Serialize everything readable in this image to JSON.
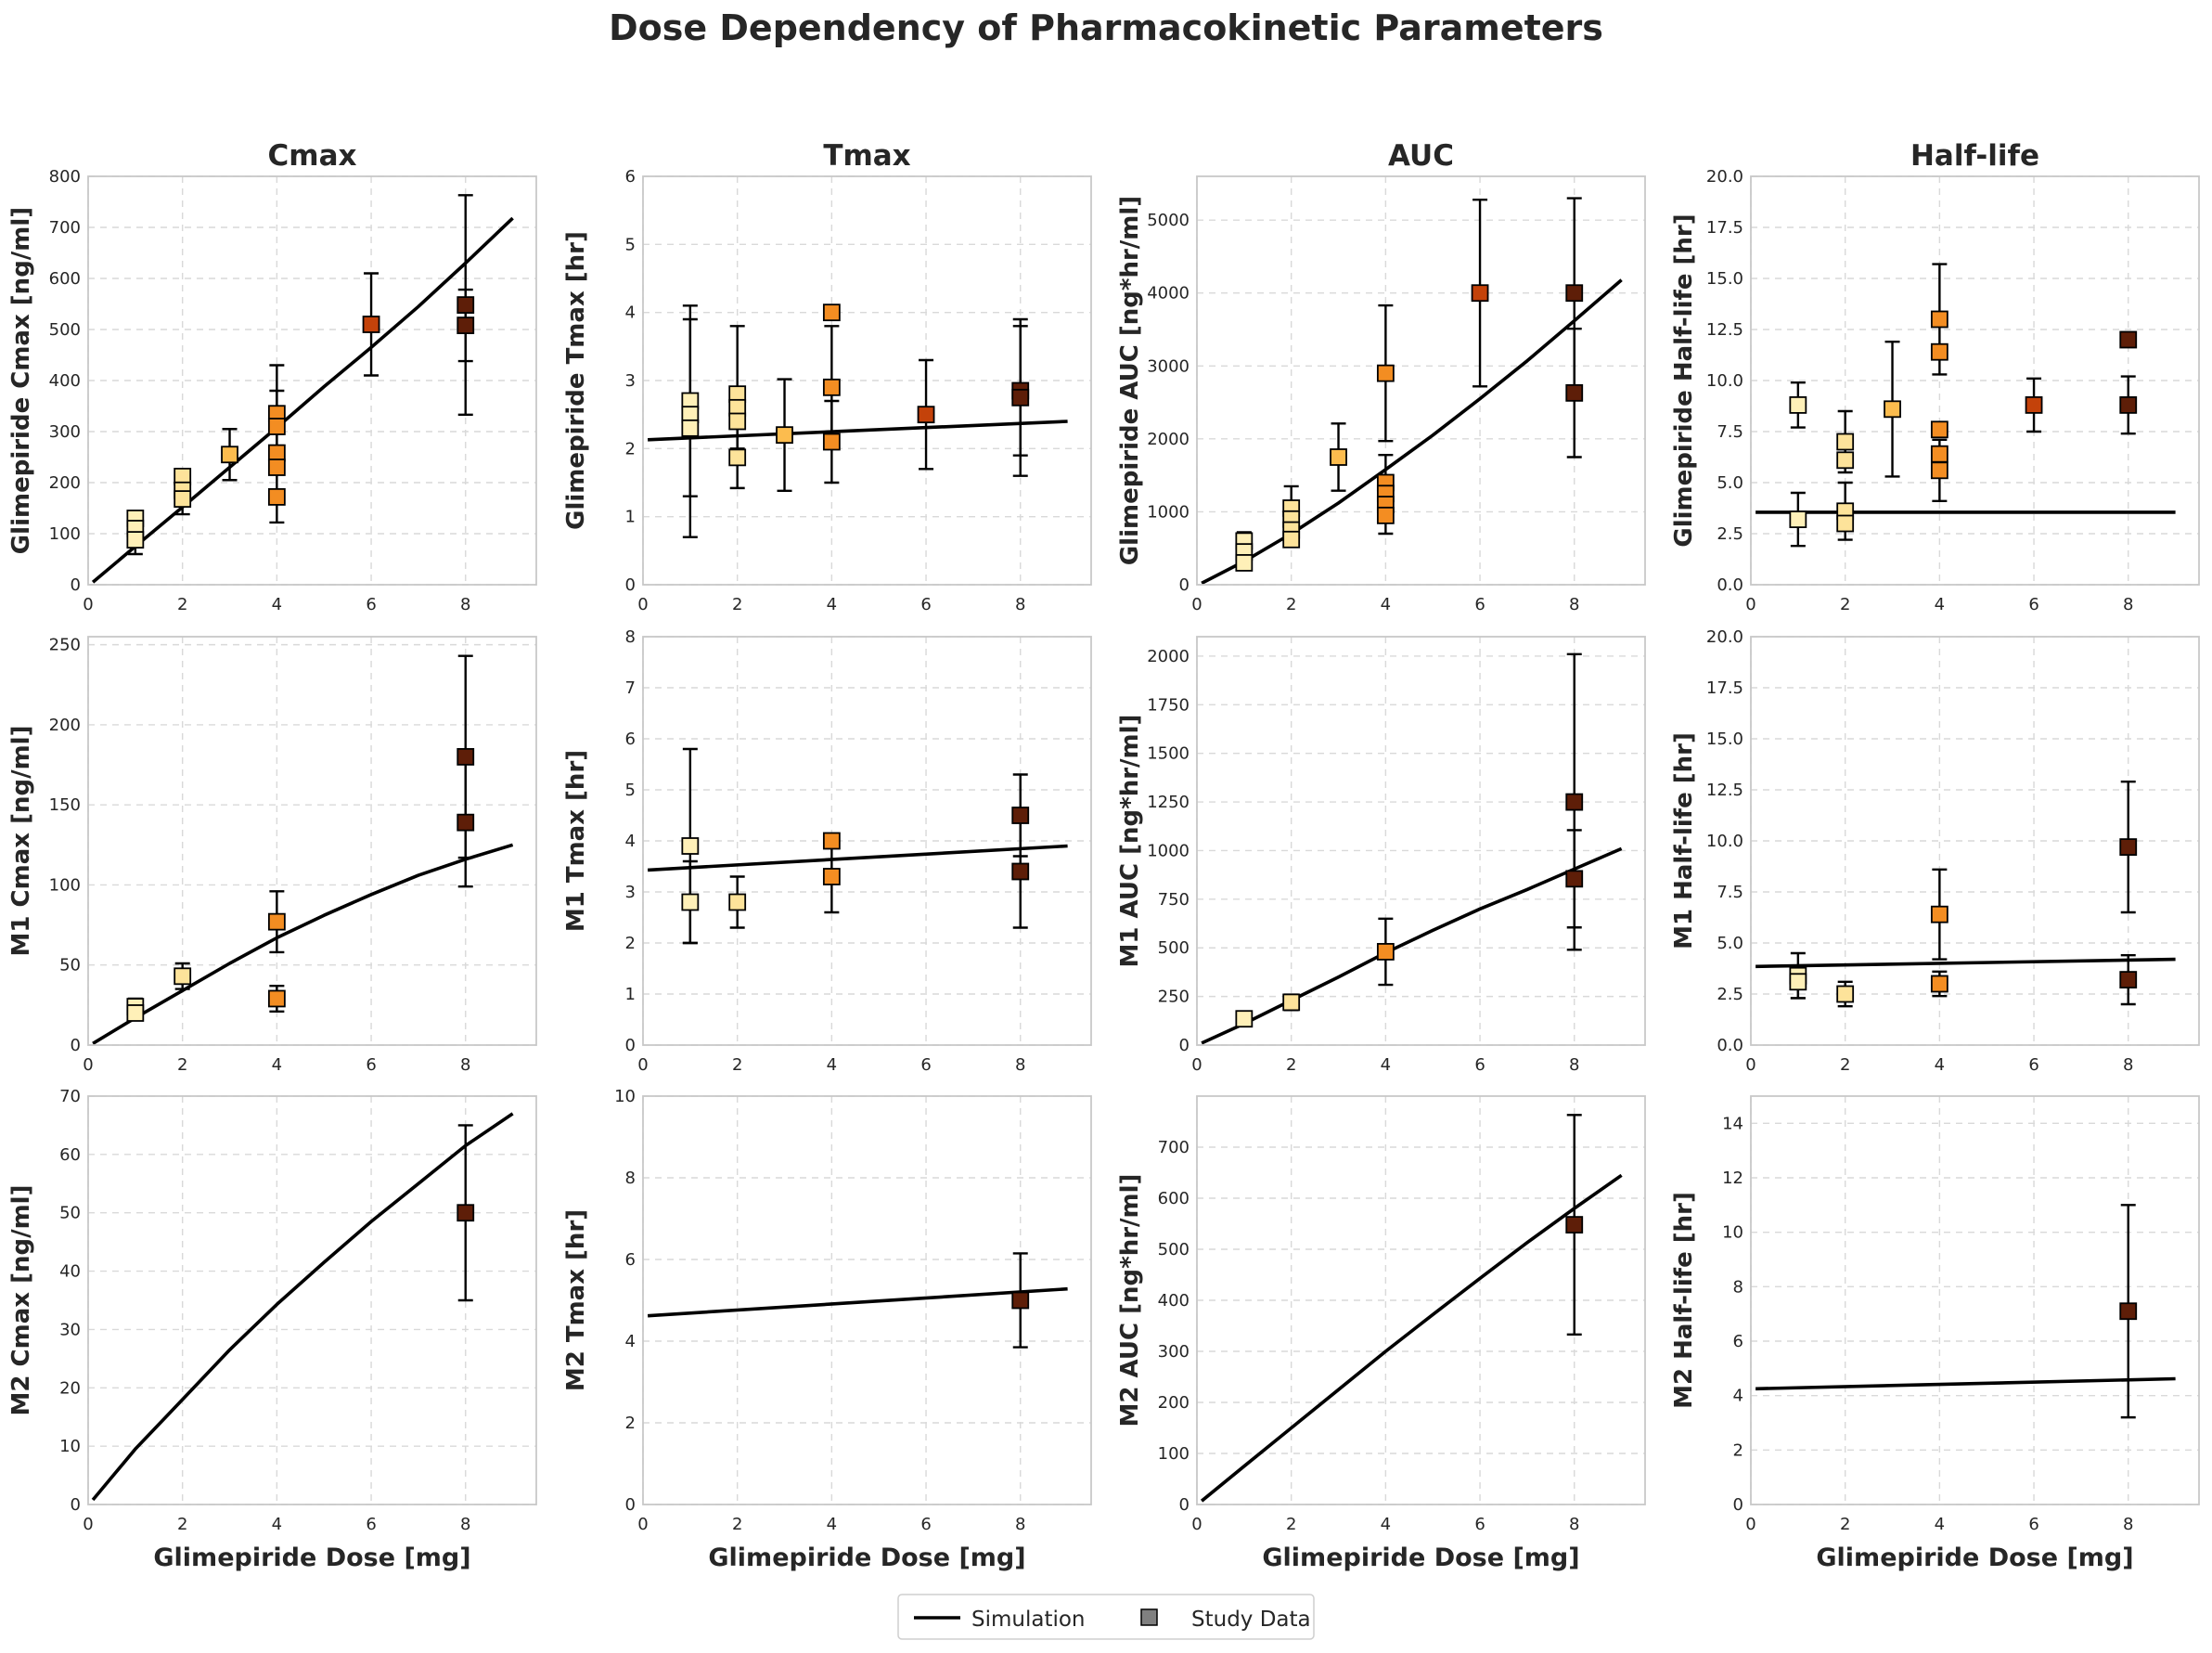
{
  "title": "Dose Dependency of Pharmacokinetic Parameters",
  "legend": {
    "items": [
      {
        "label": "Simulation",
        "kind": "line"
      },
      {
        "label": "Study Data",
        "kind": "marker"
      }
    ],
    "placement": "bottom-center"
  },
  "colors": {
    "simulation": "#000000",
    "dose_1": "#fff0b8",
    "dose_2": "#fde39a",
    "dose_3": "#fcbc4e",
    "dose_4": "#f38d22",
    "dose_6": "#c4420a",
    "dose_8": "#5e1e08",
    "grid": "#d9d9d9"
  },
  "chart_data": [
    {
      "type": "scatter",
      "title": "Cmax",
      "xlabel": "",
      "ylabel": "Glimepiride Cmax [ng/ml]",
      "xlim": [
        0,
        9.5
      ],
      "ylim": [
        0,
        800
      ],
      "xticks": [
        0,
        2,
        4,
        6,
        8
      ],
      "yticks": [
        0,
        100,
        200,
        300,
        400,
        500,
        600,
        700,
        800
      ],
      "ytick_labels": [
        "0",
        "100",
        "200",
        "300",
        "400",
        "500",
        "600",
        "700",
        "800"
      ],
      "simulation": {
        "x": [
          0.1,
          1,
          2,
          3,
          4,
          5,
          6,
          7,
          8,
          9
        ],
        "y": [
          5,
          75,
          152,
          230,
          308,
          388,
          465,
          545,
          630,
          718
        ]
      },
      "points": [
        {
          "x": 1,
          "y": 130,
          "err": 0
        },
        {
          "x": 1,
          "y": 110,
          "err": 0
        },
        {
          "x": 1,
          "y": 88,
          "err": 28
        },
        {
          "x": 2,
          "y": 212,
          "err": 0
        },
        {
          "x": 2,
          "y": 185,
          "err": 0
        },
        {
          "x": 2,
          "y": 168,
          "err": 30
        },
        {
          "x": 3,
          "y": 255,
          "err": 50
        },
        {
          "x": 4,
          "y": 335,
          "err": 95
        },
        {
          "x": 4,
          "y": 310,
          "err": 70
        },
        {
          "x": 4,
          "y": 258,
          "err": 0
        },
        {
          "x": 4,
          "y": 230,
          "err": 0
        },
        {
          "x": 4,
          "y": 172,
          "err": 50
        },
        {
          "x": 6,
          "y": 510,
          "err": 100
        },
        {
          "x": 8,
          "y": 548,
          "err": 215
        },
        {
          "x": 8,
          "y": 508,
          "err": 70
        }
      ]
    },
    {
      "type": "scatter",
      "title": "Tmax",
      "xlabel": "",
      "ylabel": "Glimepiride Tmax [hr]",
      "xlim": [
        0,
        9.5
      ],
      "ylim": [
        0,
        6
      ],
      "xticks": [
        0,
        2,
        4,
        6,
        8
      ],
      "yticks": [
        0,
        1,
        2,
        3,
        4,
        5,
        6
      ],
      "ytick_labels": [
        "0",
        "1",
        "2",
        "3",
        "4",
        "5",
        "6"
      ],
      "simulation": {
        "x": [
          0.1,
          9
        ],
        "y": [
          2.13,
          2.4
        ]
      },
      "points": [
        {
          "x": 1,
          "y": 2.7,
          "err": 1.4
        },
        {
          "x": 1,
          "y": 2.5,
          "err": 0
        },
        {
          "x": 1,
          "y": 2.3,
          "err": 1.6
        },
        {
          "x": 2,
          "y": 2.8,
          "err": 1.0
        },
        {
          "x": 2,
          "y": 2.6,
          "err": 0
        },
        {
          "x": 2,
          "y": 2.4,
          "err": 0.4
        },
        {
          "x": 2,
          "y": 1.87,
          "err": 0.45
        },
        {
          "x": 3,
          "y": 2.2,
          "err": 0.82
        },
        {
          "x": 4,
          "y": 4.0,
          "err": 0
        },
        {
          "x": 4,
          "y": 2.9,
          "err": 0.9
        },
        {
          "x": 4,
          "y": 2.1,
          "err": 0.6
        },
        {
          "x": 6,
          "y": 2.5,
          "err": 0.8
        },
        {
          "x": 8,
          "y": 2.85,
          "err": 0.95
        },
        {
          "x": 8,
          "y": 2.75,
          "err": 1.15
        }
      ]
    },
    {
      "type": "scatter",
      "title": "AUC",
      "xlabel": "",
      "ylabel": "Glimepiride AUC [ng*hr/ml]",
      "xlim": [
        0,
        9.5
      ],
      "ylim": [
        0,
        5600
      ],
      "xticks": [
        0,
        2,
        4,
        6,
        8
      ],
      "yticks": [
        0,
        1000,
        2000,
        3000,
        4000,
        5000
      ],
      "ytick_labels": [
        "0",
        "1000",
        "2000",
        "3000",
        "4000",
        "5000"
      ],
      "simulation": {
        "x": [
          0.1,
          1,
          2,
          3,
          4,
          5,
          6,
          7,
          8,
          9
        ],
        "y": [
          20,
          320,
          700,
          1120,
          1580,
          2050,
          2550,
          3070,
          3620,
          4180
        ]
      },
      "points": [
        {
          "x": 1,
          "y": 600,
          "err": 120
        },
        {
          "x": 1,
          "y": 450,
          "err": 0
        },
        {
          "x": 1,
          "y": 300,
          "err": 0
        },
        {
          "x": 2,
          "y": 1050,
          "err": 300
        },
        {
          "x": 2,
          "y": 900,
          "err": 0
        },
        {
          "x": 2,
          "y": 750,
          "err": 0
        },
        {
          "x": 2,
          "y": 620,
          "err": 100
        },
        {
          "x": 3,
          "y": 1750,
          "err": 460
        },
        {
          "x": 4,
          "y": 2900,
          "err": 930
        },
        {
          "x": 4,
          "y": 1400,
          "err": 380
        },
        {
          "x": 4,
          "y": 1250,
          "err": 0
        },
        {
          "x": 4,
          "y": 1100,
          "err": 0
        },
        {
          "x": 4,
          "y": 950,
          "err": 250
        },
        {
          "x": 6,
          "y": 4000,
          "err": 1280
        },
        {
          "x": 8,
          "y": 4000,
          "err": 1300
        },
        {
          "x": 8,
          "y": 2630,
          "err": 880
        }
      ]
    },
    {
      "type": "scatter",
      "title": "Half-life",
      "xlabel": "",
      "ylabel": "Glimepiride Half-life [hr]",
      "xlim": [
        0,
        9.5
      ],
      "ylim": [
        0,
        20
      ],
      "xticks": [
        0,
        2,
        4,
        6,
        8
      ],
      "yticks": [
        0,
        2.5,
        5,
        7.5,
        10,
        12.5,
        15,
        17.5,
        20
      ],
      "ytick_labels": [
        "0.0",
        "2.5",
        "5.0",
        "7.5",
        "10.0",
        "12.5",
        "15.0",
        "17.5",
        "20.0"
      ],
      "simulation": {
        "x": [
          0.1,
          9
        ],
        "y": [
          3.55,
          3.55
        ]
      },
      "points": [
        {
          "x": 1,
          "y": 8.8,
          "err": 1.1
        },
        {
          "x": 1,
          "y": 3.2,
          "err": 1.3
        },
        {
          "x": 2,
          "y": 7.0,
          "err": 1.5
        },
        {
          "x": 2,
          "y": 6.1,
          "err": 0
        },
        {
          "x": 2,
          "y": 3.6,
          "err": 1.4
        },
        {
          "x": 2,
          "y": 3.0,
          "err": 0
        },
        {
          "x": 3,
          "y": 8.6,
          "err": 3.3
        },
        {
          "x": 4,
          "y": 13.0,
          "err": 2.7
        },
        {
          "x": 4,
          "y": 11.4,
          "err": 0
        },
        {
          "x": 4,
          "y": 7.6,
          "err": 0
        },
        {
          "x": 4,
          "y": 6.4,
          "err": 0
        },
        {
          "x": 4,
          "y": 5.6,
          "err": 1.5
        },
        {
          "x": 6,
          "y": 8.8,
          "err": 1.3
        },
        {
          "x": 8,
          "y": 12.0,
          "err": 0
        },
        {
          "x": 8,
          "y": 8.8,
          "err": 1.4
        }
      ]
    },
    {
      "type": "scatter",
      "title": "",
      "xlabel": "",
      "ylabel": "M1 Cmax [ng/ml]",
      "xlim": [
        0,
        9.5
      ],
      "ylim": [
        0,
        255
      ],
      "xticks": [
        0,
        2,
        4,
        6,
        8
      ],
      "yticks": [
        0,
        50,
        100,
        150,
        200,
        250
      ],
      "ytick_labels": [
        "0",
        "50",
        "100",
        "150",
        "200",
        "250"
      ],
      "simulation": {
        "x": [
          0.1,
          1,
          2,
          3,
          4,
          5,
          6,
          7,
          8,
          9
        ],
        "y": [
          1,
          17,
          34,
          51,
          67,
          81,
          94,
          106,
          116,
          125
        ]
      },
      "points": [
        {
          "x": 1,
          "y": 24,
          "err": 5
        },
        {
          "x": 1,
          "y": 20,
          "err": 0
        },
        {
          "x": 2,
          "y": 43,
          "err": 8
        },
        {
          "x": 4,
          "y": 77,
          "err": 19
        },
        {
          "x": 4,
          "y": 29,
          "err": 8
        },
        {
          "x": 8,
          "y": 180,
          "err": 63
        },
        {
          "x": 8,
          "y": 139,
          "err": 40
        }
      ]
    },
    {
      "type": "scatter",
      "title": "",
      "xlabel": "",
      "ylabel": "M1 Tmax [hr]",
      "xlim": [
        0,
        9.5
      ],
      "ylim": [
        0,
        8
      ],
      "xticks": [
        0,
        2,
        4,
        6,
        8
      ],
      "yticks": [
        0,
        1,
        2,
        3,
        4,
        5,
        6,
        7,
        8
      ],
      "ytick_labels": [
        "0",
        "1",
        "2",
        "3",
        "4",
        "5",
        "6",
        "7",
        "8"
      ],
      "simulation": {
        "x": [
          0.1,
          9
        ],
        "y": [
          3.43,
          3.9
        ]
      },
      "points": [
        {
          "x": 1,
          "y": 3.9,
          "err": 1.9
        },
        {
          "x": 1,
          "y": 2.8,
          "err": 0.8
        },
        {
          "x": 2,
          "y": 2.8,
          "err": 0.5
        },
        {
          "x": 4,
          "y": 4.0,
          "err": 0
        },
        {
          "x": 4,
          "y": 3.3,
          "err": 0.7
        },
        {
          "x": 8,
          "y": 4.5,
          "err": 0.8
        },
        {
          "x": 8,
          "y": 3.4,
          "err": 1.1
        }
      ]
    },
    {
      "type": "scatter",
      "title": "",
      "xlabel": "",
      "ylabel": "M1 AUC [ng*hr/ml]",
      "xlim": [
        0,
        9.5
      ],
      "ylim": [
        0,
        2100
      ],
      "xticks": [
        0,
        2,
        4,
        6,
        8
      ],
      "yticks": [
        0,
        250,
        500,
        750,
        1000,
        1250,
        1500,
        1750,
        2000
      ],
      "ytick_labels": [
        "0",
        "250",
        "500",
        "750",
        "1000",
        "1250",
        "1500",
        "1750",
        "2000"
      ],
      "simulation": {
        "x": [
          0.1,
          1,
          2,
          3,
          4,
          5,
          6,
          7,
          8,
          9
        ],
        "y": [
          10,
          110,
          230,
          350,
          475,
          590,
          700,
          800,
          905,
          1010
        ]
      },
      "points": [
        {
          "x": 1,
          "y": 135,
          "err": 25
        },
        {
          "x": 2,
          "y": 220,
          "err": 40
        },
        {
          "x": 4,
          "y": 480,
          "err": 170
        },
        {
          "x": 8,
          "y": 1250,
          "err": 760
        },
        {
          "x": 8,
          "y": 855,
          "err": 250
        }
      ]
    },
    {
      "type": "scatter",
      "title": "",
      "xlabel": "",
      "ylabel": "M1 Half-life [hr]",
      "xlim": [
        0,
        9.5
      ],
      "ylim": [
        0,
        20
      ],
      "xticks": [
        0,
        2,
        4,
        6,
        8
      ],
      "yticks": [
        0,
        2.5,
        5,
        7.5,
        10,
        12.5,
        15,
        17.5,
        20
      ],
      "ytick_labels": [
        "0.0",
        "2.5",
        "5.0",
        "7.5",
        "10.0",
        "12.5",
        "15.0",
        "17.5",
        "20.0"
      ],
      "simulation": {
        "x": [
          0.1,
          9
        ],
        "y": [
          3.85,
          4.2
        ]
      },
      "points": [
        {
          "x": 1,
          "y": 3.4,
          "err": 1.1
        },
        {
          "x": 1,
          "y": 3.1,
          "err": 0.8
        },
        {
          "x": 2,
          "y": 2.5,
          "err": 0.6
        },
        {
          "x": 4,
          "y": 6.4,
          "err": 2.2
        },
        {
          "x": 4,
          "y": 3.0,
          "err": 0.6
        },
        {
          "x": 8,
          "y": 9.7,
          "err": 3.2
        },
        {
          "x": 8,
          "y": 3.2,
          "err": 1.2
        }
      ]
    },
    {
      "type": "scatter",
      "title": "",
      "xlabel": "Glimepiride Dose [mg]",
      "ylabel": "M2 Cmax [ng/ml]",
      "xlim": [
        0,
        9.5
      ],
      "ylim": [
        0,
        70
      ],
      "xticks": [
        0,
        2,
        4,
        6,
        8
      ],
      "yticks": [
        0,
        10,
        20,
        30,
        40,
        50,
        60,
        70
      ],
      "ytick_labels": [
        "0",
        "10",
        "20",
        "30",
        "40",
        "50",
        "60",
        "70"
      ],
      "simulation": {
        "x": [
          0.1,
          1,
          2,
          3,
          4,
          5,
          6,
          7,
          8,
          9
        ],
        "y": [
          0.8,
          9.5,
          18,
          26.5,
          34.3,
          41.5,
          48.5,
          55,
          61.5,
          67
        ]
      },
      "points": [
        {
          "x": 8,
          "y": 50,
          "err": 15
        }
      ]
    },
    {
      "type": "scatter",
      "title": "",
      "xlabel": "Glimepiride Dose [mg]",
      "ylabel": "M2 Tmax [hr]",
      "xlim": [
        0,
        9.5
      ],
      "ylim": [
        0,
        10
      ],
      "xticks": [
        0,
        2,
        4,
        6,
        8
      ],
      "yticks": [
        0,
        2,
        4,
        6,
        8,
        10
      ],
      "ytick_labels": [
        "0",
        "2",
        "4",
        "6",
        "8",
        "10"
      ],
      "simulation": {
        "x": [
          0.1,
          9
        ],
        "y": [
          4.62,
          5.28
        ]
      },
      "points": [
        {
          "x": 8,
          "y": 5.0,
          "err": 1.15
        }
      ]
    },
    {
      "type": "scatter",
      "title": "",
      "xlabel": "Glimepiride Dose [mg]",
      "ylabel": "M2 AUC [ng*hr/ml]",
      "xlim": [
        0,
        9.5
      ],
      "ylim": [
        0,
        800
      ],
      "xticks": [
        0,
        2,
        4,
        6,
        8
      ],
      "yticks": [
        0,
        100,
        200,
        300,
        400,
        500,
        600,
        700
      ],
      "ytick_labels": [
        "0",
        "100",
        "200",
        "300",
        "400",
        "500",
        "600",
        "700"
      ],
      "simulation": {
        "x": [
          0.1,
          1,
          2,
          3,
          4,
          5,
          6,
          7,
          8,
          9
        ],
        "y": [
          7,
          75,
          150,
          225,
          300,
          372,
          443,
          513,
          580,
          645
        ]
      },
      "points": [
        {
          "x": 8,
          "y": 548,
          "err": 215
        }
      ]
    },
    {
      "type": "scatter",
      "title": "",
      "xlabel": "Glimepiride Dose [mg]",
      "ylabel": "M2 Half-life [hr]",
      "xlim": [
        0,
        9.5
      ],
      "ylim": [
        0,
        15
      ],
      "xticks": [
        0,
        2,
        4,
        6,
        8
      ],
      "yticks": [
        0,
        2,
        4,
        6,
        8,
        10,
        12,
        14
      ],
      "ytick_labels": [
        "0",
        "2",
        "4",
        "6",
        "8",
        "10",
        "12",
        "14"
      ],
      "simulation": {
        "x": [
          0.1,
          9
        ],
        "y": [
          4.25,
          4.62
        ]
      },
      "points": [
        {
          "x": 8,
          "y": 7.1,
          "err": 3.9
        }
      ]
    }
  ]
}
